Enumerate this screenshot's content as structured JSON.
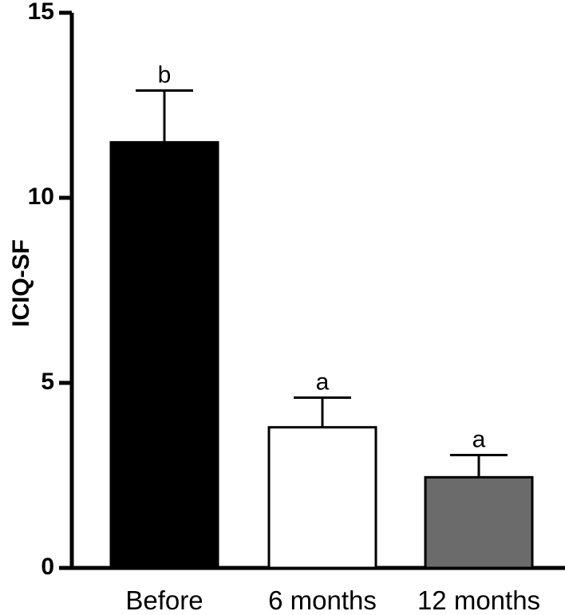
{
  "chart_data": {
    "type": "bar",
    "ylabel": "ICIQ-SF",
    "xlabel": "",
    "ylim": [
      0,
      15
    ],
    "yticks": [
      0,
      5,
      10,
      15
    ],
    "categories": [
      "Before",
      "6 months",
      "12 months"
    ],
    "values": [
      11.5,
      3.8,
      2.45
    ],
    "errors": [
      1.4,
      0.8,
      0.6
    ],
    "significance": [
      "b",
      "a",
      "a"
    ],
    "bar_colors": [
      "#000000",
      "#ffffff",
      "#6b6b6b"
    ],
    "bar_edge_color": "#000000",
    "grid": false,
    "legend": "none"
  }
}
